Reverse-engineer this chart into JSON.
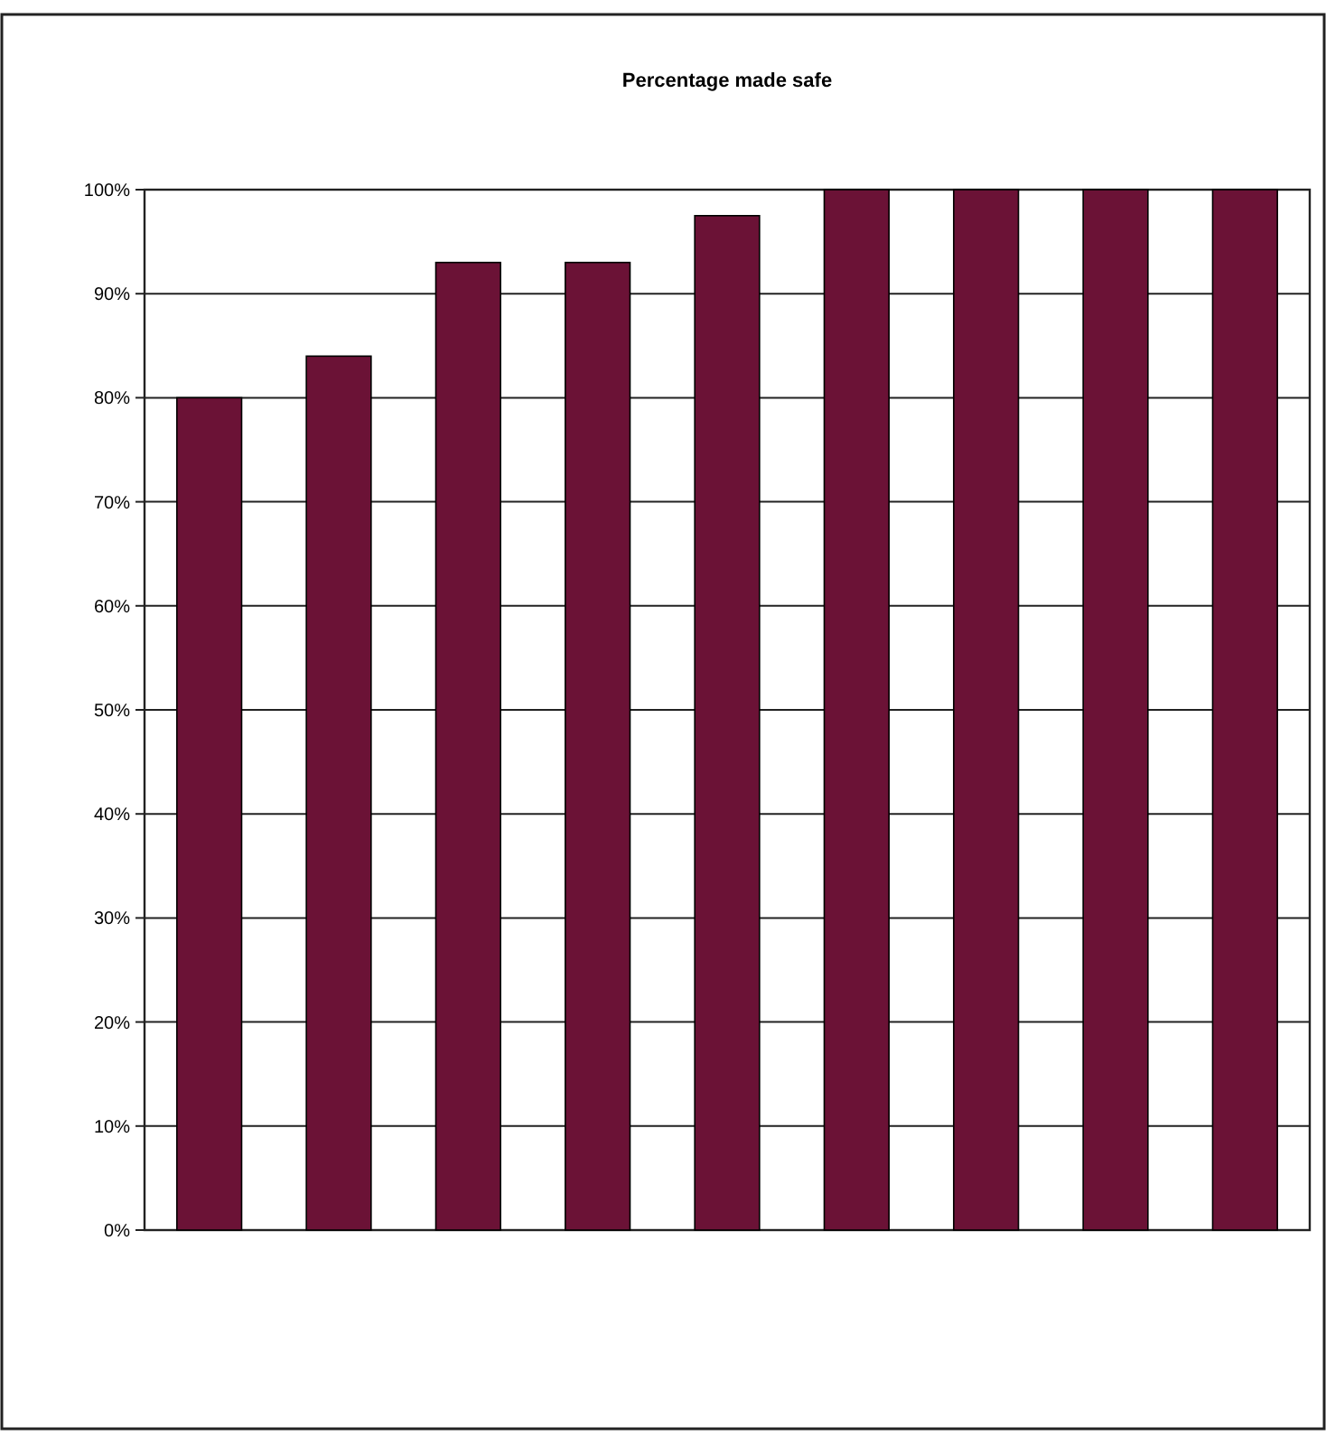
{
  "chart_data": {
    "type": "bar",
    "title": "Percentage made safe",
    "categories": [
      null,
      null,
      null,
      null,
      null,
      null,
      null,
      null,
      null
    ],
    "values": [
      80,
      84,
      93,
      93,
      97.5,
      100,
      100,
      100,
      100
    ],
    "color": "#6b1236",
    "ylim": [
      0,
      100
    ],
    "yticks": [
      {
        "value": 0,
        "label": "0%"
      },
      {
        "value": 10,
        "label": "10%"
      },
      {
        "value": 20,
        "label": "20%"
      },
      {
        "value": 30,
        "label": "30%"
      },
      {
        "value": 40,
        "label": "40%"
      },
      {
        "value": 50,
        "label": "50%"
      },
      {
        "value": 60,
        "label": "60%"
      },
      {
        "value": 70,
        "label": "70%"
      },
      {
        "value": 80,
        "label": "80%"
      },
      {
        "value": 90,
        "label": "90%"
      },
      {
        "value": 100,
        "label": "100%"
      }
    ],
    "grid": "y"
  }
}
